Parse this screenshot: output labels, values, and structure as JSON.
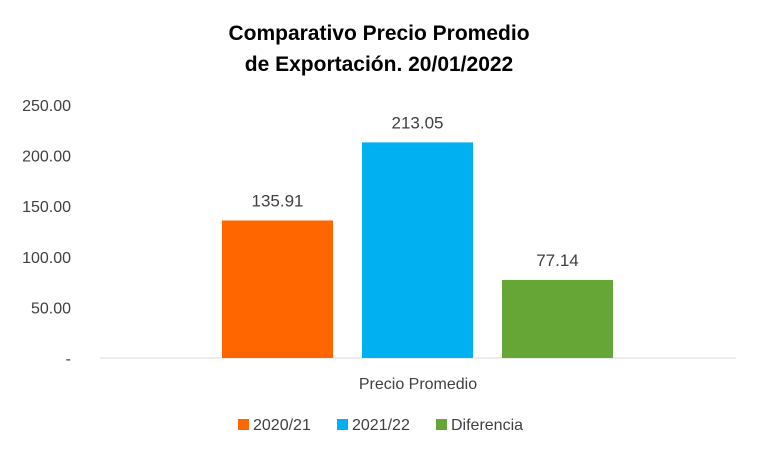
{
  "chart_data": {
    "type": "bar",
    "title_lines": [
      "Comparativo Precio Promedio",
      "de Exportación. 20/01/2022"
    ],
    "categories": [
      "Precio Promedio"
    ],
    "series": [
      {
        "name": "2020/21",
        "value": 135.91,
        "label": "135.91",
        "color": "#FF6600"
      },
      {
        "name": "2021/22",
        "value": 213.05,
        "label": "213.05",
        "color": "#00B0F0"
      },
      {
        "name": "Diferencia",
        "value": 77.14,
        "label": "77.14",
        "color": "#65A637"
      }
    ],
    "y_ticks": [
      {
        "value": 0,
        "label": "-"
      },
      {
        "value": 50,
        "label": "50.00"
      },
      {
        "value": 100,
        "label": "100.00"
      },
      {
        "value": 150,
        "label": "150.00"
      },
      {
        "value": 200,
        "label": "200.00"
      },
      {
        "value": 250,
        "label": "250.00"
      }
    ],
    "ylim": [
      0,
      250
    ],
    "grid": false,
    "legend_position": "bottom"
  }
}
